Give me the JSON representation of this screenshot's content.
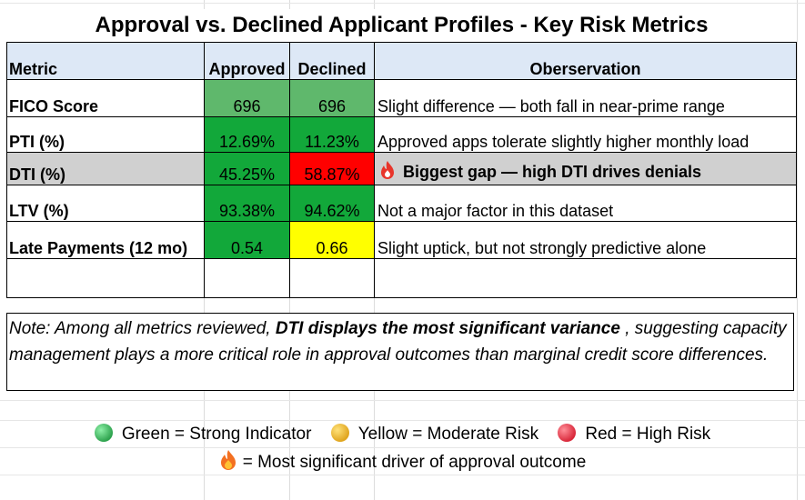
{
  "title": "Approval vs. Declined Applicant Profiles - Key Risk Metrics",
  "table": {
    "headers": {
      "metric": "Metric",
      "approved": "Approved",
      "declined": "Declined",
      "observation": "Oberservation"
    },
    "rows": [
      {
        "metric": "FICO Score",
        "approved": "696",
        "declined": "696",
        "observation": "Slight difference — both fall in near-prime range"
      },
      {
        "metric": "PTI (%)",
        "approved": "12.69%",
        "declined": "11.23%",
        "observation": "Approved apps tolerate slightly higher monthly load"
      },
      {
        "metric": "DTI (%)",
        "approved": "45.25%",
        "declined": "58.87%",
        "observation": "Biggest gap — high DTI drives denials",
        "icon": "fire-icon"
      },
      {
        "metric": "LTV (%)",
        "approved": "93.38%",
        "declined": "94.62%",
        "observation": "Not a major factor in this dataset"
      },
      {
        "metric": "Late Payments (12 mo)",
        "approved": "0.54",
        "declined": "0.66",
        "observation": "Slight uptick, but not strongly predictive alone"
      }
    ]
  },
  "note": {
    "prefix": "Note: Among all metrics reviewed, ",
    "emphasis": "DTI displays the most significant variance",
    "suffix": " , suggesting capacity management plays a more critical role in approval outcomes than marginal credit score differences."
  },
  "legend": {
    "green": "Green = Strong Indicator",
    "yellow": "Yellow = Moderate Risk",
    "red": "Red = High Risk",
    "fire": "= Most significant driver of approval outcome"
  },
  "colors": {
    "header_bg": "#dde8f6",
    "green_light": "#5fb86c",
    "green_strong": "#12a83a",
    "red": "#ff0000",
    "yellow": "#ffff00",
    "dti_row_bg": "#d0d0d0"
  }
}
